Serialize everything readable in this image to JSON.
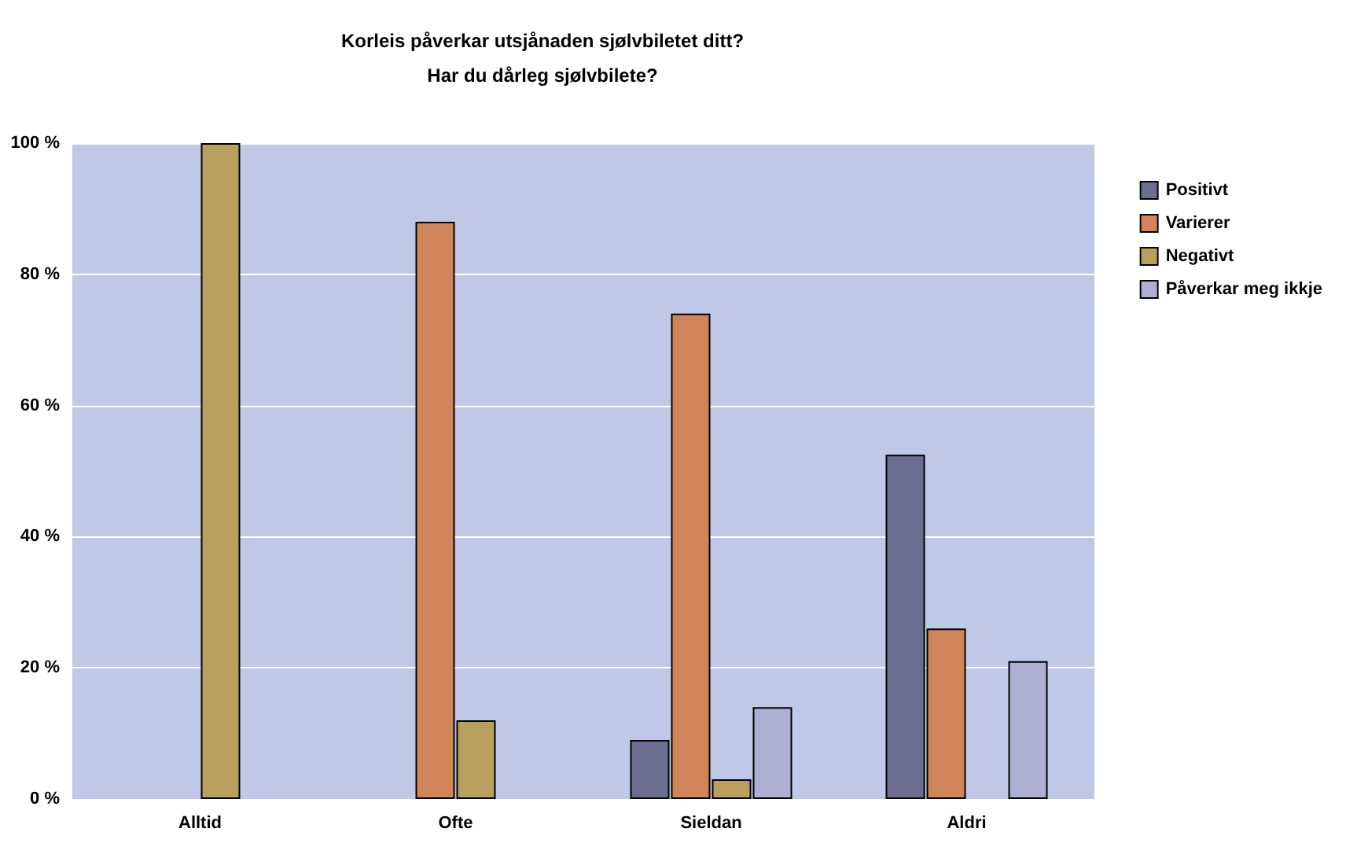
{
  "chart_data": {
    "type": "bar",
    "title": "Korleis påverkar utsjånaden sjølvbiletet ditt?\nHar du dårleg sjølvbilete?",
    "categories": [
      "Alltid",
      "Ofte",
      "Sieldan",
      "Aldri"
    ],
    "series": [
      {
        "name": "Positivt",
        "color": "#6b6e8e",
        "values": [
          null,
          null,
          9,
          52.5
        ]
      },
      {
        "name": "Varierer",
        "color": "#d0845a",
        "values": [
          null,
          88,
          74,
          26
        ]
      },
      {
        "name": "Negativt",
        "color": "#b99f5d",
        "values": [
          100,
          12,
          3,
          null
        ]
      },
      {
        "name": "Påverkar meg ikkje",
        "color": "#aeb0d3",
        "values": [
          null,
          null,
          14,
          21
        ]
      }
    ],
    "ylim": [
      0,
      100
    ],
    "yticks": [
      {
        "value": 0,
        "label": "0 %"
      },
      {
        "value": 20,
        "label": "20 %"
      },
      {
        "value": 40,
        "label": "40 %"
      },
      {
        "value": 60,
        "label": "60 %"
      },
      {
        "value": 80,
        "label": "80 %"
      },
      {
        "value": 100,
        "label": "100 %"
      }
    ],
    "grid": "y",
    "legend": "right"
  }
}
